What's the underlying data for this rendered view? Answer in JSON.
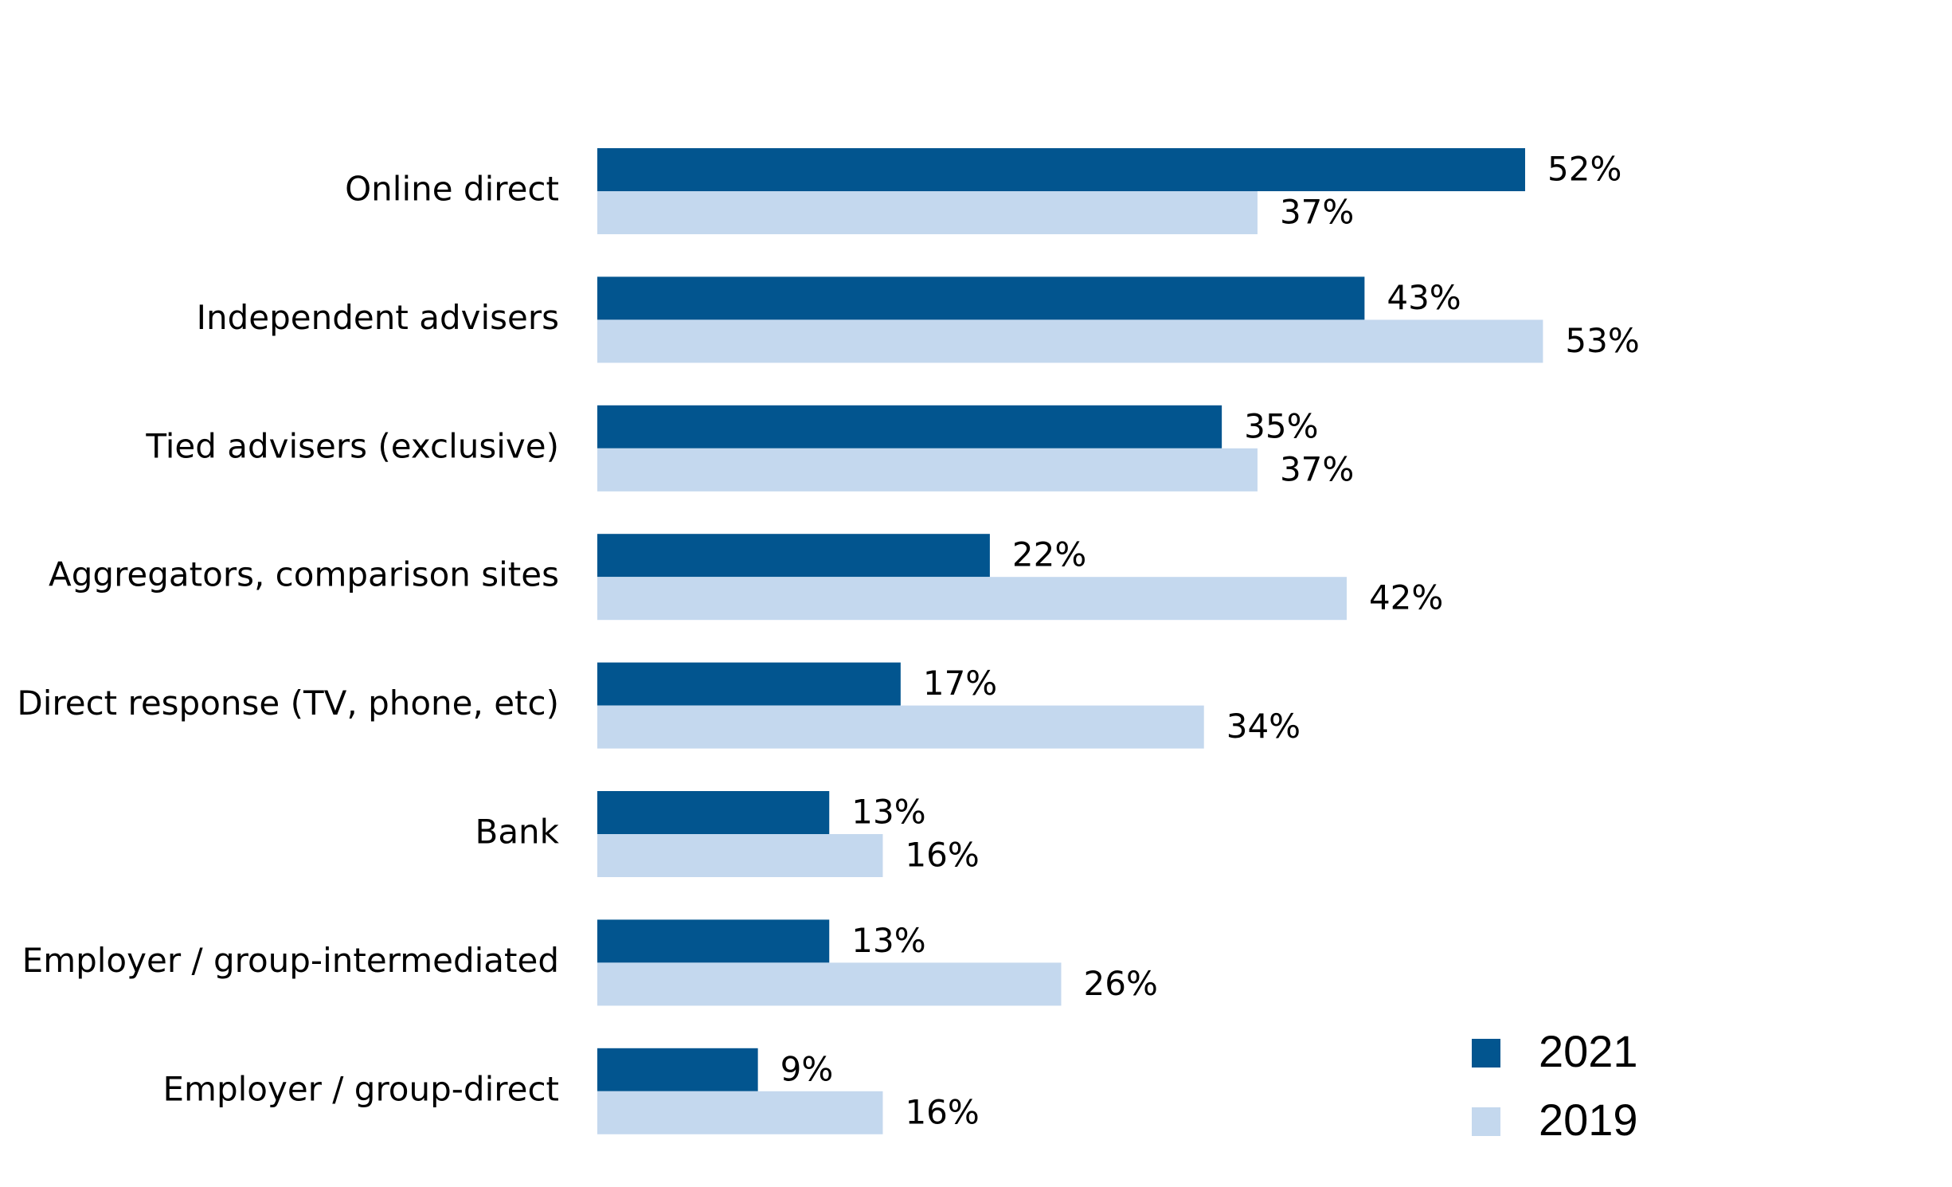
{
  "chart_data": {
    "type": "bar",
    "orientation": "horizontal",
    "title": "",
    "xlabel": "",
    "ylabel": "",
    "xlim": [
      0,
      100
    ],
    "grid": false,
    "legend_position": "bottom-right",
    "value_suffix": "%",
    "categories": [
      "Online direct",
      "Independent advisers",
      "Tied advisers (exclusive)",
      "Aggregators, comparison sites",
      "Direct response (TV, phone, etc)",
      "Bank",
      "Employer / group-intermediated",
      "Employer / group-direct"
    ],
    "series": [
      {
        "name": "2021",
        "color": "#02558f",
        "values": [
          52,
          43,
          35,
          22,
          17,
          13,
          13,
          9
        ]
      },
      {
        "name": "2019",
        "color": "#c4d8ee",
        "values": [
          37,
          53,
          37,
          42,
          34,
          16,
          26,
          16
        ]
      }
    ]
  }
}
